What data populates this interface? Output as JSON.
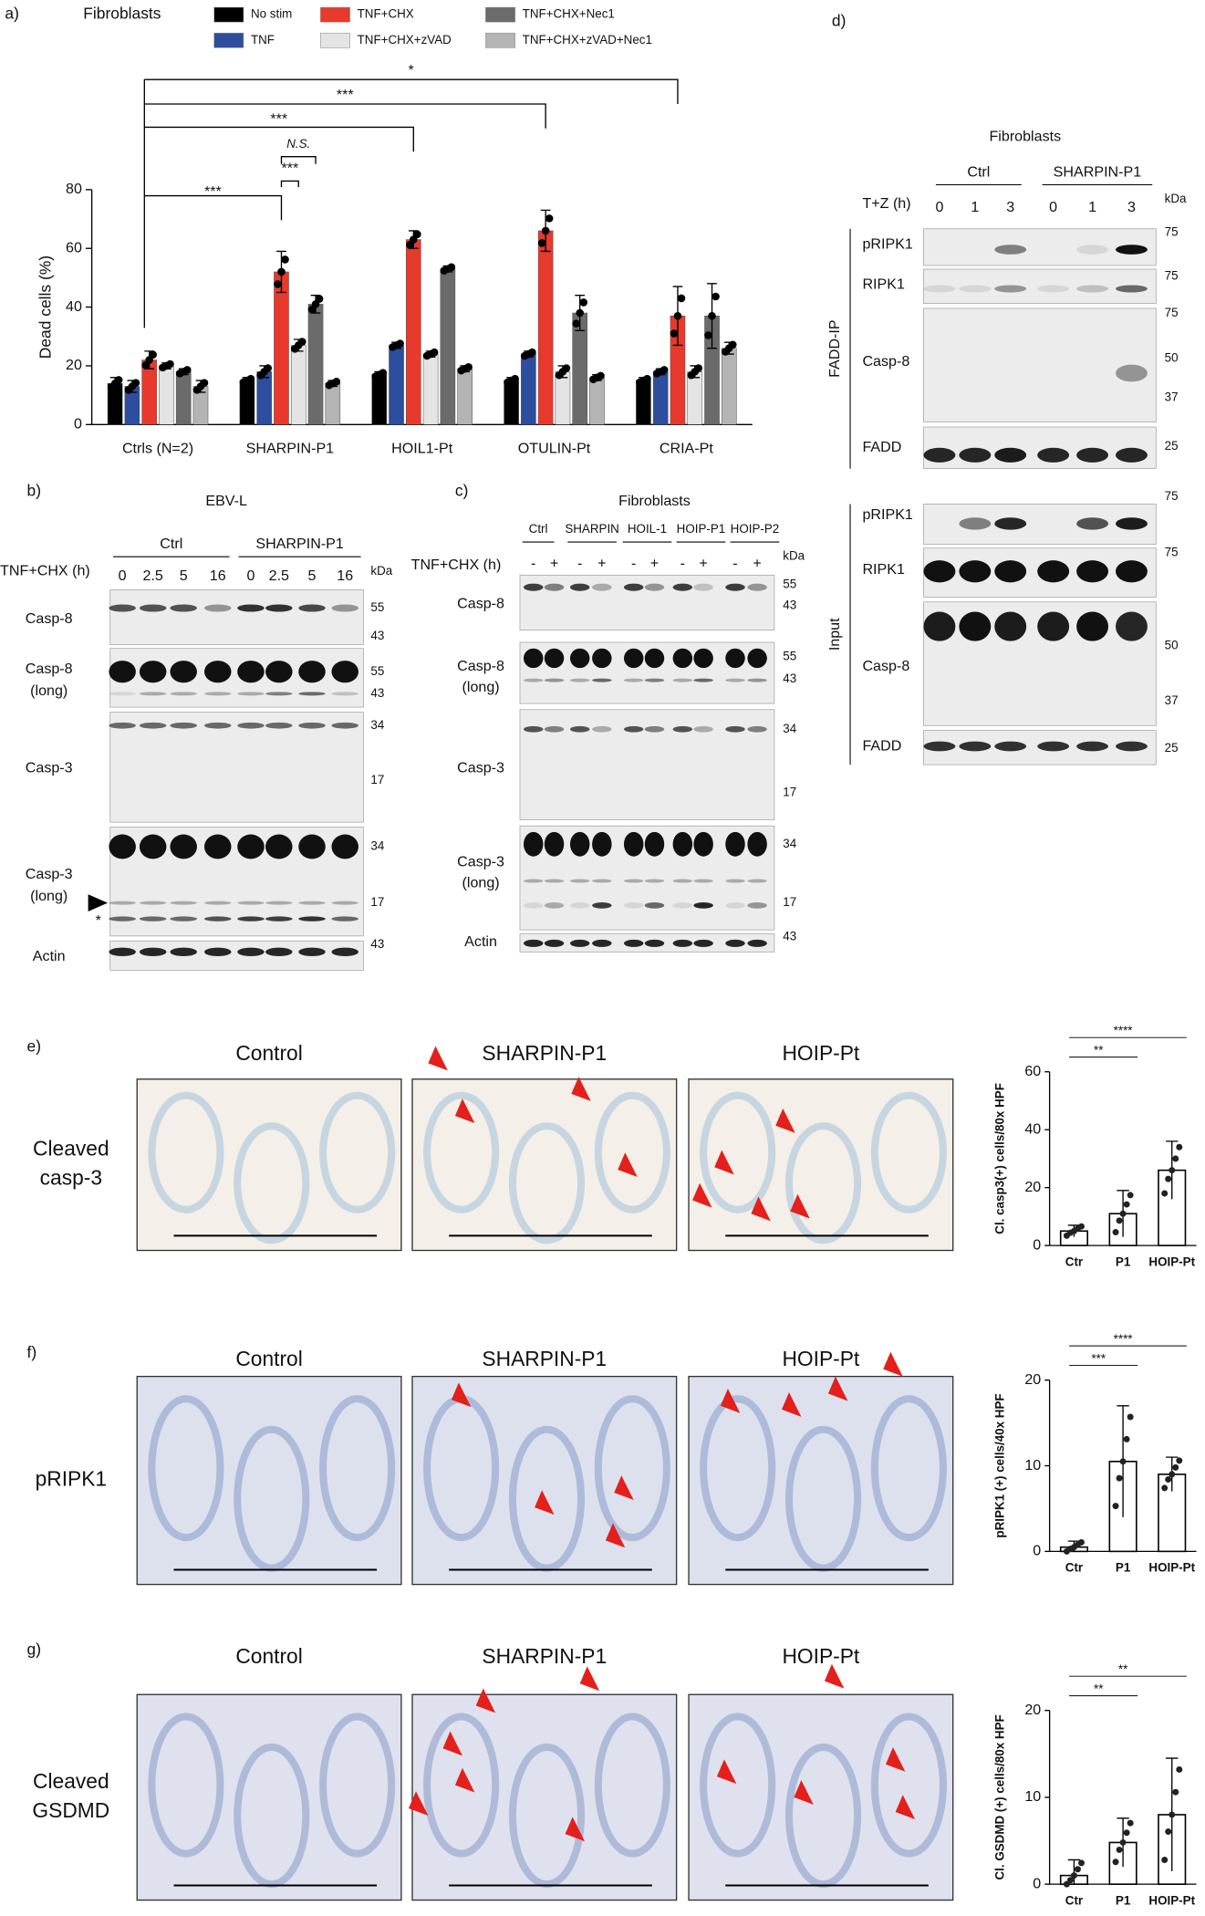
{
  "chart_data": [
    {
      "type": "bar",
      "panel": "a)",
      "subtitle": "Fibroblasts",
      "y_label": "Dead cells (%)",
      "categories": [
        "Ctrls (N=2)",
        "SHARPIN-P1",
        "HOIL1-Pt",
        "OTULIN-Pt",
        "CRIA-Pt"
      ],
      "series": [
        {
          "name": "No stim",
          "color": "#000000",
          "values": [
            14,
            15,
            17,
            15,
            15
          ],
          "errors": [
            2,
            1,
            1,
            1,
            1
          ]
        },
        {
          "name": "TNF",
          "color": "#2d4e9e",
          "values": [
            13,
            18,
            27,
            24,
            18
          ],
          "errors": [
            2,
            2,
            1,
            1,
            1
          ]
        },
        {
          "name": "TNF+CHX",
          "color": "#e8392d",
          "values": [
            22,
            52,
            63,
            66,
            37
          ],
          "errors": [
            3,
            7,
            3,
            7,
            10
          ]
        },
        {
          "name": "TNF+CHX+zVAD",
          "color": "#e4e4e4",
          "values": [
            20,
            27,
            24,
            18,
            18
          ],
          "errors": [
            1,
            2,
            1,
            2,
            2
          ]
        },
        {
          "name": "TNF+CHX+Nec1",
          "color": "#6b6b6b",
          "values": [
            18,
            41,
            53,
            38,
            37
          ],
          "errors": [
            1,
            3,
            1,
            6,
            11
          ]
        },
        {
          "name": "TNF+CHX+zVAD+Nec1",
          "color": "#b4b4b4",
          "values": [
            13,
            14,
            19,
            16,
            26
          ],
          "errors": [
            2,
            1,
            1,
            1,
            2
          ]
        }
      ],
      "ylim": [
        0,
        80
      ],
      "yticks": [
        0,
        20,
        40,
        60,
        80
      ],
      "annotations": [
        "*",
        "***",
        "***",
        "***",
        "N.S.",
        "***"
      ]
    },
    {
      "type": "bar",
      "y_label": "Cl. casp3(+) cells/80x HPF",
      "categories": [
        "Ctr",
        "P1",
        "HOIP-Pt"
      ],
      "values": [
        5,
        11,
        26
      ],
      "errors": [
        2,
        8,
        10
      ],
      "color": "#ffffff",
      "ylim": [
        0,
        60
      ],
      "yticks": [
        0,
        20,
        40,
        60
      ],
      "annotations": [
        "**",
        "****"
      ]
    },
    {
      "type": "bar",
      "y_label": "pRIPK1 (+) cells/40x HPF",
      "categories": [
        "Ctr",
        "P1",
        "HOIP-Pt"
      ],
      "values": [
        0.5,
        10.5,
        9
      ],
      "errors": [
        0.7,
        6.5,
        2
      ],
      "color": "#ffffff",
      "ylim": [
        0,
        20
      ],
      "yticks": [
        0,
        10,
        20
      ],
      "annotations": [
        "***",
        "****"
      ]
    },
    {
      "type": "bar",
      "y_label": "Cl. GSDMD (+) cells/80x HPF",
      "categories": [
        "Ctr",
        "P1",
        "HOIP-Pt"
      ],
      "values": [
        1,
        4.8,
        8
      ],
      "errors": [
        1.8,
        2.8,
        6.5
      ],
      "color": "#ffffff",
      "ylim": [
        0,
        20
      ],
      "yticks": [
        0,
        10,
        20
      ],
      "annotations": [
        "**",
        "**"
      ]
    }
  ],
  "blots": {
    "b": {
      "panel": "b)",
      "title": "EBV-L",
      "groups": [
        "Ctrl",
        "SHARPIN-P1"
      ],
      "treatment": "TNF+CHX (h)",
      "lanes": [
        "0",
        "2.5",
        "5",
        "16",
        "0",
        "2.5",
        "5",
        "16"
      ],
      "kda_header": "kDa",
      "marker": "*",
      "rows": [
        {
          "label": [
            "Casp-8"
          ],
          "kda": [
            "55",
            "43"
          ]
        },
        {
          "label": [
            "Casp-8",
            "(long)"
          ],
          "kda": [
            "55",
            "43"
          ]
        },
        {
          "label": [
            "Casp-3"
          ],
          "kda": [
            "34",
            "17"
          ]
        },
        {
          "label": [
            "Casp-3",
            "(long)"
          ],
          "kda": [
            "34",
            "17"
          ]
        },
        {
          "label": [
            "Actin"
          ],
          "kda": [
            "43"
          ]
        }
      ]
    },
    "c": {
      "panel": "c)",
      "title": "Fibroblasts",
      "groups": [
        "Ctrl",
        "SHARPIN",
        "HOIL-1",
        "HOIP-P1",
        "HOIP-P2"
      ],
      "treatment": "TNF+CHX (h)",
      "lanes": [
        "-",
        "+",
        "-",
        "+",
        "-",
        "+",
        "-",
        "+",
        "-",
        "+"
      ],
      "kda_header": "kDa",
      "rows": [
        {
          "label": [
            "Casp-8"
          ],
          "kda": [
            "55",
            "43"
          ]
        },
        {
          "label": [
            "Casp-8",
            "(long)"
          ],
          "kda": [
            "55",
            "43"
          ]
        },
        {
          "label": [
            "Casp-3"
          ],
          "kda": [
            "34",
            "17"
          ]
        },
        {
          "label": [
            "Casp-3",
            "(long)"
          ],
          "kda": [
            "34",
            "17"
          ]
        },
        {
          "label": [
            "Actin"
          ],
          "kda": [
            "43"
          ]
        }
      ]
    },
    "d": {
      "panel": "d)",
      "title": "Fibroblasts",
      "groups": [
        "Ctrl",
        "SHARPIN-P1"
      ],
      "treatment": "T+Z (h)",
      "lanes": [
        "0",
        "1",
        "3",
        "0",
        "1",
        "3"
      ],
      "kda_header": "kDa",
      "sections": [
        "FADD-IP",
        "Input"
      ],
      "rows": [
        {
          "label": [
            "pRIPK1"
          ],
          "kda": [
            "75"
          ]
        },
        {
          "label": [
            "RIPK1"
          ],
          "kda": [
            "75"
          ]
        },
        {
          "label": [
            "Casp-8"
          ],
          "kda": [
            "75",
            "50",
            "37"
          ]
        },
        {
          "label": [
            "FADD"
          ],
          "kda": [
            "25"
          ]
        },
        {
          "label": [
            "pRIPK1"
          ],
          "kda": [
            "75"
          ]
        },
        {
          "label": [
            "RIPK1"
          ],
          "kda": [
            "75"
          ]
        },
        {
          "label": [
            "Casp-8"
          ],
          "kda": [
            "50",
            "37"
          ]
        },
        {
          "label": [
            "FADD"
          ],
          "kda": [
            "25"
          ]
        }
      ]
    }
  },
  "histology": [
    {
      "panel": "e)",
      "label": [
        "Cleaved",
        "casp-3"
      ],
      "columns": [
        "Control",
        "SHARPIN-P1",
        "HOIP-Pt"
      ]
    },
    {
      "panel": "f)",
      "label": [
        "pRIPK1"
      ],
      "columns": [
        "Control",
        "SHARPIN-P1",
        "HOIP-Pt"
      ]
    },
    {
      "panel": "g)",
      "label": [
        "Cleaved",
        "GSDMD"
      ],
      "columns": [
        "Control",
        "SHARPIN-P1",
        "HOIP-Pt"
      ]
    }
  ]
}
